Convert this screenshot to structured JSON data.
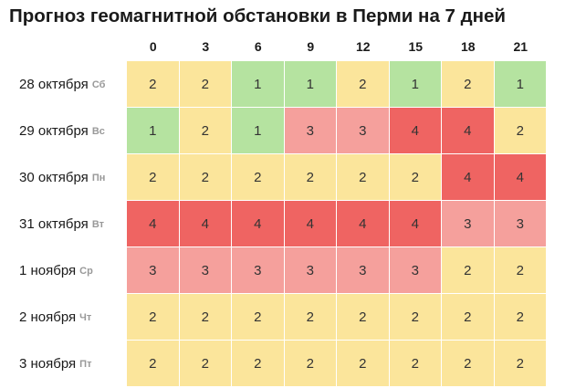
{
  "title": "Прогноз геомагнитной обстановки в Перми на 7 дней",
  "hours": [
    "0",
    "3",
    "6",
    "9",
    "12",
    "15",
    "18",
    "21"
  ],
  "level_colors": {
    "1": "#b5e3a0",
    "2": "#fbe59b",
    "3": "#f5a09c",
    "4": "#ef6462"
  },
  "days": [
    {
      "date": "28 октября",
      "dow": "Сб",
      "values": [
        "2",
        "2",
        "1",
        "1",
        "2",
        "1",
        "2",
        "1"
      ]
    },
    {
      "date": "29 октября",
      "dow": "Вс",
      "values": [
        "1",
        "2",
        "1",
        "3",
        "3",
        "4",
        "4",
        "2"
      ]
    },
    {
      "date": "30 октября",
      "dow": "Пн",
      "values": [
        "2",
        "2",
        "2",
        "2",
        "2",
        "2",
        "4",
        "4"
      ]
    },
    {
      "date": "31 октября",
      "dow": "Вт",
      "values": [
        "4",
        "4",
        "4",
        "4",
        "4",
        "4",
        "3",
        "3"
      ]
    },
    {
      "date": "1 ноября",
      "dow": "Ср",
      "values": [
        "3",
        "3",
        "3",
        "3",
        "3",
        "3",
        "2",
        "2"
      ]
    },
    {
      "date": "2 ноября",
      "dow": "Чт",
      "values": [
        "2",
        "2",
        "2",
        "2",
        "2",
        "2",
        "2",
        "2"
      ]
    },
    {
      "date": "3 ноября",
      "dow": "Пт",
      "values": [
        "2",
        "2",
        "2",
        "2",
        "2",
        "2",
        "2",
        "2"
      ]
    }
  ]
}
